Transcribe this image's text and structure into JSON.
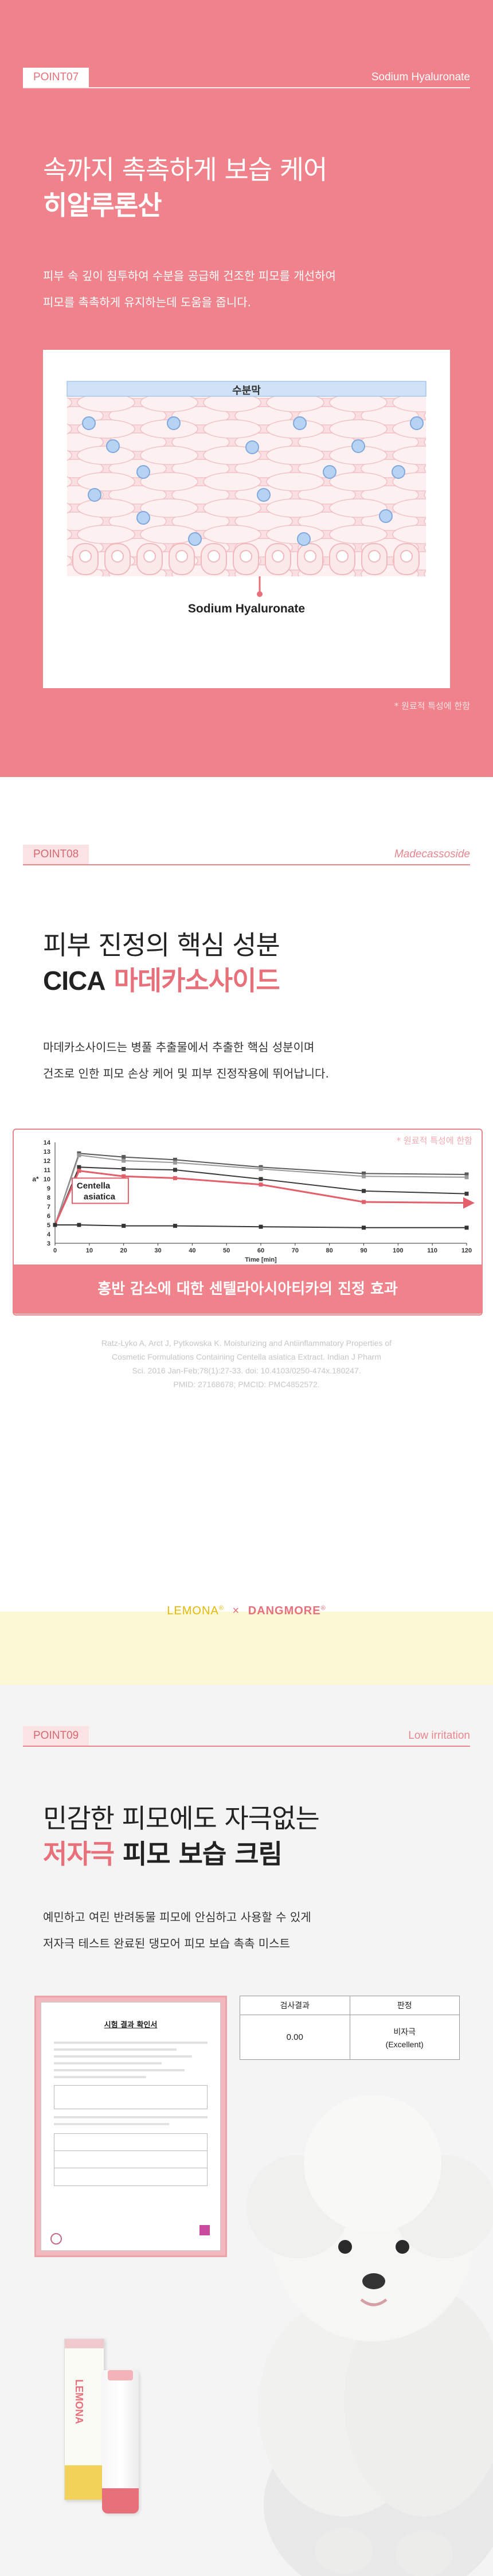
{
  "point07": {
    "number": "POINT07",
    "english": "Sodium Hyaluronate",
    "headline_line1": "속까지 촉촉하게 보습 케어",
    "headline_line2": "히알루론산",
    "desc_line1": "피부 속 깊이 침투하여 수분을 공급해 건조한 피모를 개선하여",
    "desc_line2": "피모를 촉촉하게 유지하는데 도움을 줍니다.",
    "diagram_top_label": "수분막",
    "diagram_bottom_label": "Sodium Hyaluronate",
    "footnote": "* 원료적 특성에 한함"
  },
  "point08": {
    "number": "POINT08",
    "english": "Madecassoside",
    "headline_line1": "피부 진정의 핵심 성분",
    "headline_cica": "CICA",
    "headline_rest": " 마데카소사이드",
    "desc_line1": "마데카소사이드는 병풀 추출물에서 추출한 핵심 성분이며",
    "desc_line2": "건조로 인한 피모 손상 케어 및 피부 진정작용에 뛰어납니다.",
    "chart_note": "* 원료적 특성에 한함",
    "chart_caption": "홍반 감소에 대한 센텔라아시아티카의 진정 효과",
    "reference_lines": [
      "Ratz-Lyko A, Arct J, Pytkowska K. Moisturizing and Antiinflammatory Properties of",
      "Cosmetic Formulations Containing Centella asiatica Extract. Indian J Pharm",
      "Sci. 2016 Jan-Feb;78(1):27-33. doi: 10.4103/0250-474x.180247.",
      "PMID: 27168678; PMCID: PMC4852572."
    ]
  },
  "chart_data": {
    "type": "line",
    "xlabel": "Time [min]",
    "ylabel": "a*",
    "x": [
      0,
      10,
      20,
      30,
      40,
      50,
      60,
      70,
      80,
      90,
      100,
      110,
      120
    ],
    "xlim": [
      0,
      120
    ],
    "ylim": [
      3,
      14
    ],
    "yticks": [
      3,
      4,
      5,
      6,
      7,
      8,
      9,
      10,
      11,
      12,
      13,
      14
    ],
    "annotation": "Centella asiatica",
    "series": [
      {
        "x": [
          0,
          7,
          20,
          35,
          60,
          90,
          120
        ],
        "values": [
          5.0,
          12.8,
          12.4,
          12.1,
          11.3,
          10.6,
          10.5
        ],
        "color": "#5a5a5a"
      },
      {
        "x": [
          0,
          7,
          20,
          35,
          60,
          90,
          120
        ],
        "values": [
          5.0,
          12.6,
          12.0,
          11.8,
          11.1,
          10.3,
          10.2
        ],
        "color": "#9a9a9a"
      },
      {
        "x": [
          0,
          7,
          20,
          35,
          60,
          90,
          120
        ],
        "values": [
          5.0,
          11.3,
          11.1,
          11.0,
          10.0,
          8.7,
          8.4
        ],
        "color": "#3a3a3a"
      },
      {
        "x": [
          0,
          7,
          20,
          35,
          60,
          90,
          120
        ],
        "values": [
          5.0,
          10.9,
          10.3,
          10.1,
          9.4,
          7.5,
          7.4
        ],
        "color": "#e2606b"
      },
      {
        "x": [
          0,
          7,
          20,
          35,
          60,
          90,
          120
        ],
        "values": [
          5.0,
          5.0,
          4.9,
          4.9,
          4.8,
          4.7,
          4.7
        ],
        "color": "#333333"
      }
    ]
  },
  "brand_band": {
    "brand1": "LEMONA",
    "sup": "®",
    "cross": "×",
    "brand2": "DANGMORE"
  },
  "point09": {
    "number": "POINT09",
    "english": "Low irritation",
    "headline_line1": "민감한 피모에도 자극없는",
    "headline_accent": "저자극",
    "headline_rest": " 피모 보습 크림",
    "desc_line1": "예민하고 여린 반려동물 피모에 안심하고 사용할 수 있게",
    "desc_line2": "저자극 테스트 완료된 댕모어 피모 보습 촉촉 미스트",
    "cert_title": "시험 결과 확인서",
    "table_header_result": "검사결과",
    "table_header_judgement": "판정",
    "table_value": "0.00",
    "table_judgement_ko": "비자극",
    "table_judgement_en": "(Excellent)",
    "product_brand": "LEMONA"
  },
  "colors": {
    "pink_bg": "#ef828a",
    "accent": "#e8707a",
    "band_bg": "#fbf8d6"
  }
}
